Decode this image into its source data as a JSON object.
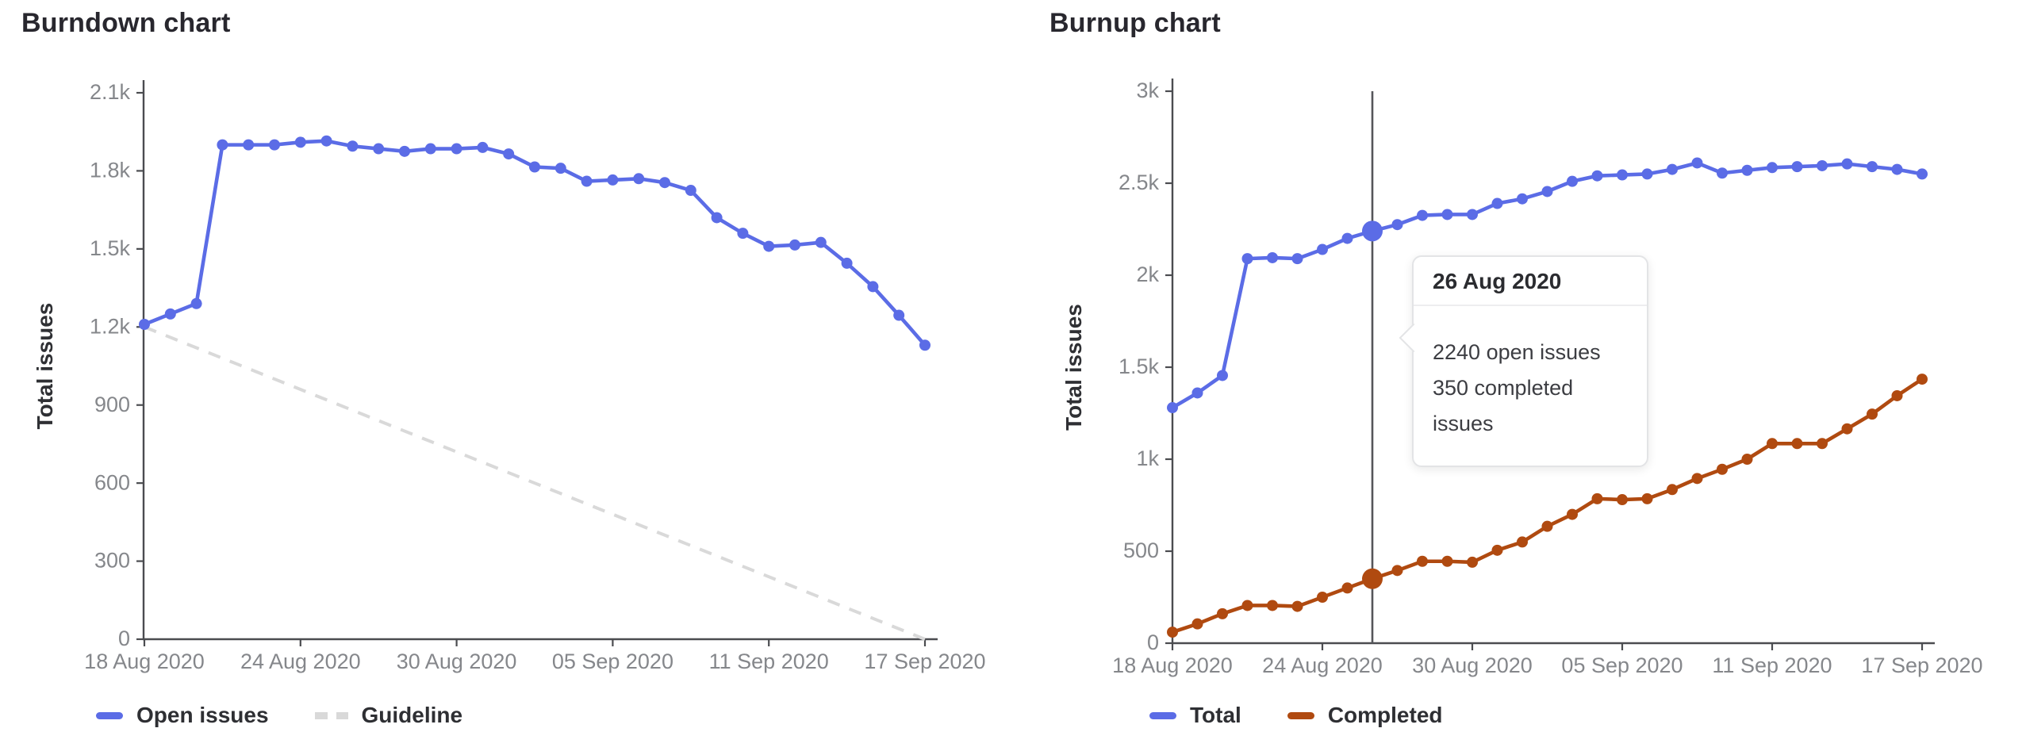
{
  "page_background": "#ffffff",
  "colors": {
    "blue": "#5b6ce6",
    "orange": "#b04a10",
    "guideline_gray": "#d9d9d9",
    "axis": "#4b4c50",
    "tick_text": "#85878b",
    "hover_line": "#55565a",
    "title_text": "#28272e"
  },
  "chart_data": [
    {
      "type": "line",
      "title": "Burndown chart",
      "ylabel": "Total issues",
      "ylim": [
        0,
        2100
      ],
      "grid": false,
      "legend_position": "bottom-left",
      "y_ticks": {
        "values": [
          0,
          300,
          600,
          900,
          1200,
          1500,
          1800,
          2100
        ],
        "labels": [
          "0",
          "300",
          "600",
          "900",
          "1.2k",
          "1.5k",
          "1.8k",
          "2.1k"
        ]
      },
      "x_ticks": {
        "day_indices": [
          0,
          6,
          12,
          18,
          24,
          30
        ],
        "labels": [
          "18 Aug 2020",
          "24 Aug 2020",
          "30 Aug 2020",
          "05 Sep 2020",
          "11 Sep 2020",
          "17 Sep 2020"
        ]
      },
      "x_range": [
        "18 Aug 2020",
        "17 Sep 2020"
      ],
      "num_days": 31,
      "series": [
        {
          "name": "Open issues",
          "style": "solid",
          "color": "#5b6ce6",
          "values": [
            1210,
            1250,
            1290,
            1900,
            1900,
            1900,
            1910,
            1915,
            1895,
            1885,
            1875,
            1885,
            1885,
            1890,
            1865,
            1815,
            1810,
            1760,
            1765,
            1770,
            1755,
            1725,
            1620,
            1560,
            1510,
            1515,
            1525,
            1445,
            1355,
            1245,
            1130
          ]
        },
        {
          "name": "Guideline",
          "style": "dashed",
          "color": "#d9d9d9",
          "linear_from": 1200,
          "linear_to": 0
        }
      ],
      "legend": [
        {
          "label": "Open issues",
          "style": "solid",
          "color": "#5b6ce6"
        },
        {
          "label": "Guideline",
          "style": "dashed",
          "color": "#d9d9d9"
        }
      ]
    },
    {
      "type": "line",
      "title": "Burnup chart",
      "ylabel": "Total issues",
      "ylim": [
        0,
        3000
      ],
      "grid": false,
      "legend_position": "bottom-left",
      "y_ticks": {
        "values": [
          0,
          500,
          1000,
          1500,
          2000,
          2500,
          3000
        ],
        "labels": [
          "0",
          "500",
          "1k",
          "1.5k",
          "2k",
          "2.5k",
          "3k"
        ]
      },
      "x_ticks": {
        "day_indices": [
          0,
          6,
          12,
          18,
          24,
          30
        ],
        "labels": [
          "18 Aug 2020",
          "24 Aug 2020",
          "30 Aug 2020",
          "05 Sep 2020",
          "11 Sep 2020",
          "17 Sep 2020"
        ]
      },
      "x_range": [
        "18 Aug 2020",
        "17 Sep 2020"
      ],
      "num_days": 31,
      "series": [
        {
          "name": "Total",
          "style": "solid",
          "color": "#5b6ce6",
          "values": [
            1280,
            1360,
            1455,
            2090,
            2095,
            2090,
            2140,
            2200,
            2240,
            2275,
            2325,
            2330,
            2330,
            2390,
            2415,
            2455,
            2510,
            2540,
            2545,
            2550,
            2575,
            2610,
            2555,
            2570,
            2585,
            2590,
            2595,
            2605,
            2590,
            2575,
            2550
          ]
        },
        {
          "name": "Completed",
          "style": "solid",
          "color": "#b04a10",
          "values": [
            60,
            105,
            160,
            205,
            205,
            200,
            250,
            300,
            350,
            395,
            445,
            445,
            440,
            505,
            550,
            635,
            700,
            785,
            780,
            785,
            835,
            895,
            945,
            1000,
            1085,
            1085,
            1085,
            1165,
            1245,
            1345,
            1435
          ]
        }
      ],
      "legend": [
        {
          "label": "Total",
          "style": "solid",
          "color": "#5b6ce6"
        },
        {
          "label": "Completed",
          "style": "solid",
          "color": "#b04a10"
        }
      ],
      "tooltip": {
        "date": "26 Aug 2020",
        "day_index": 8,
        "lines": [
          "2240 open issues",
          "350 completed issues"
        ],
        "hover_values": {
          "Total": 2240,
          "Completed": 350
        }
      }
    }
  ]
}
